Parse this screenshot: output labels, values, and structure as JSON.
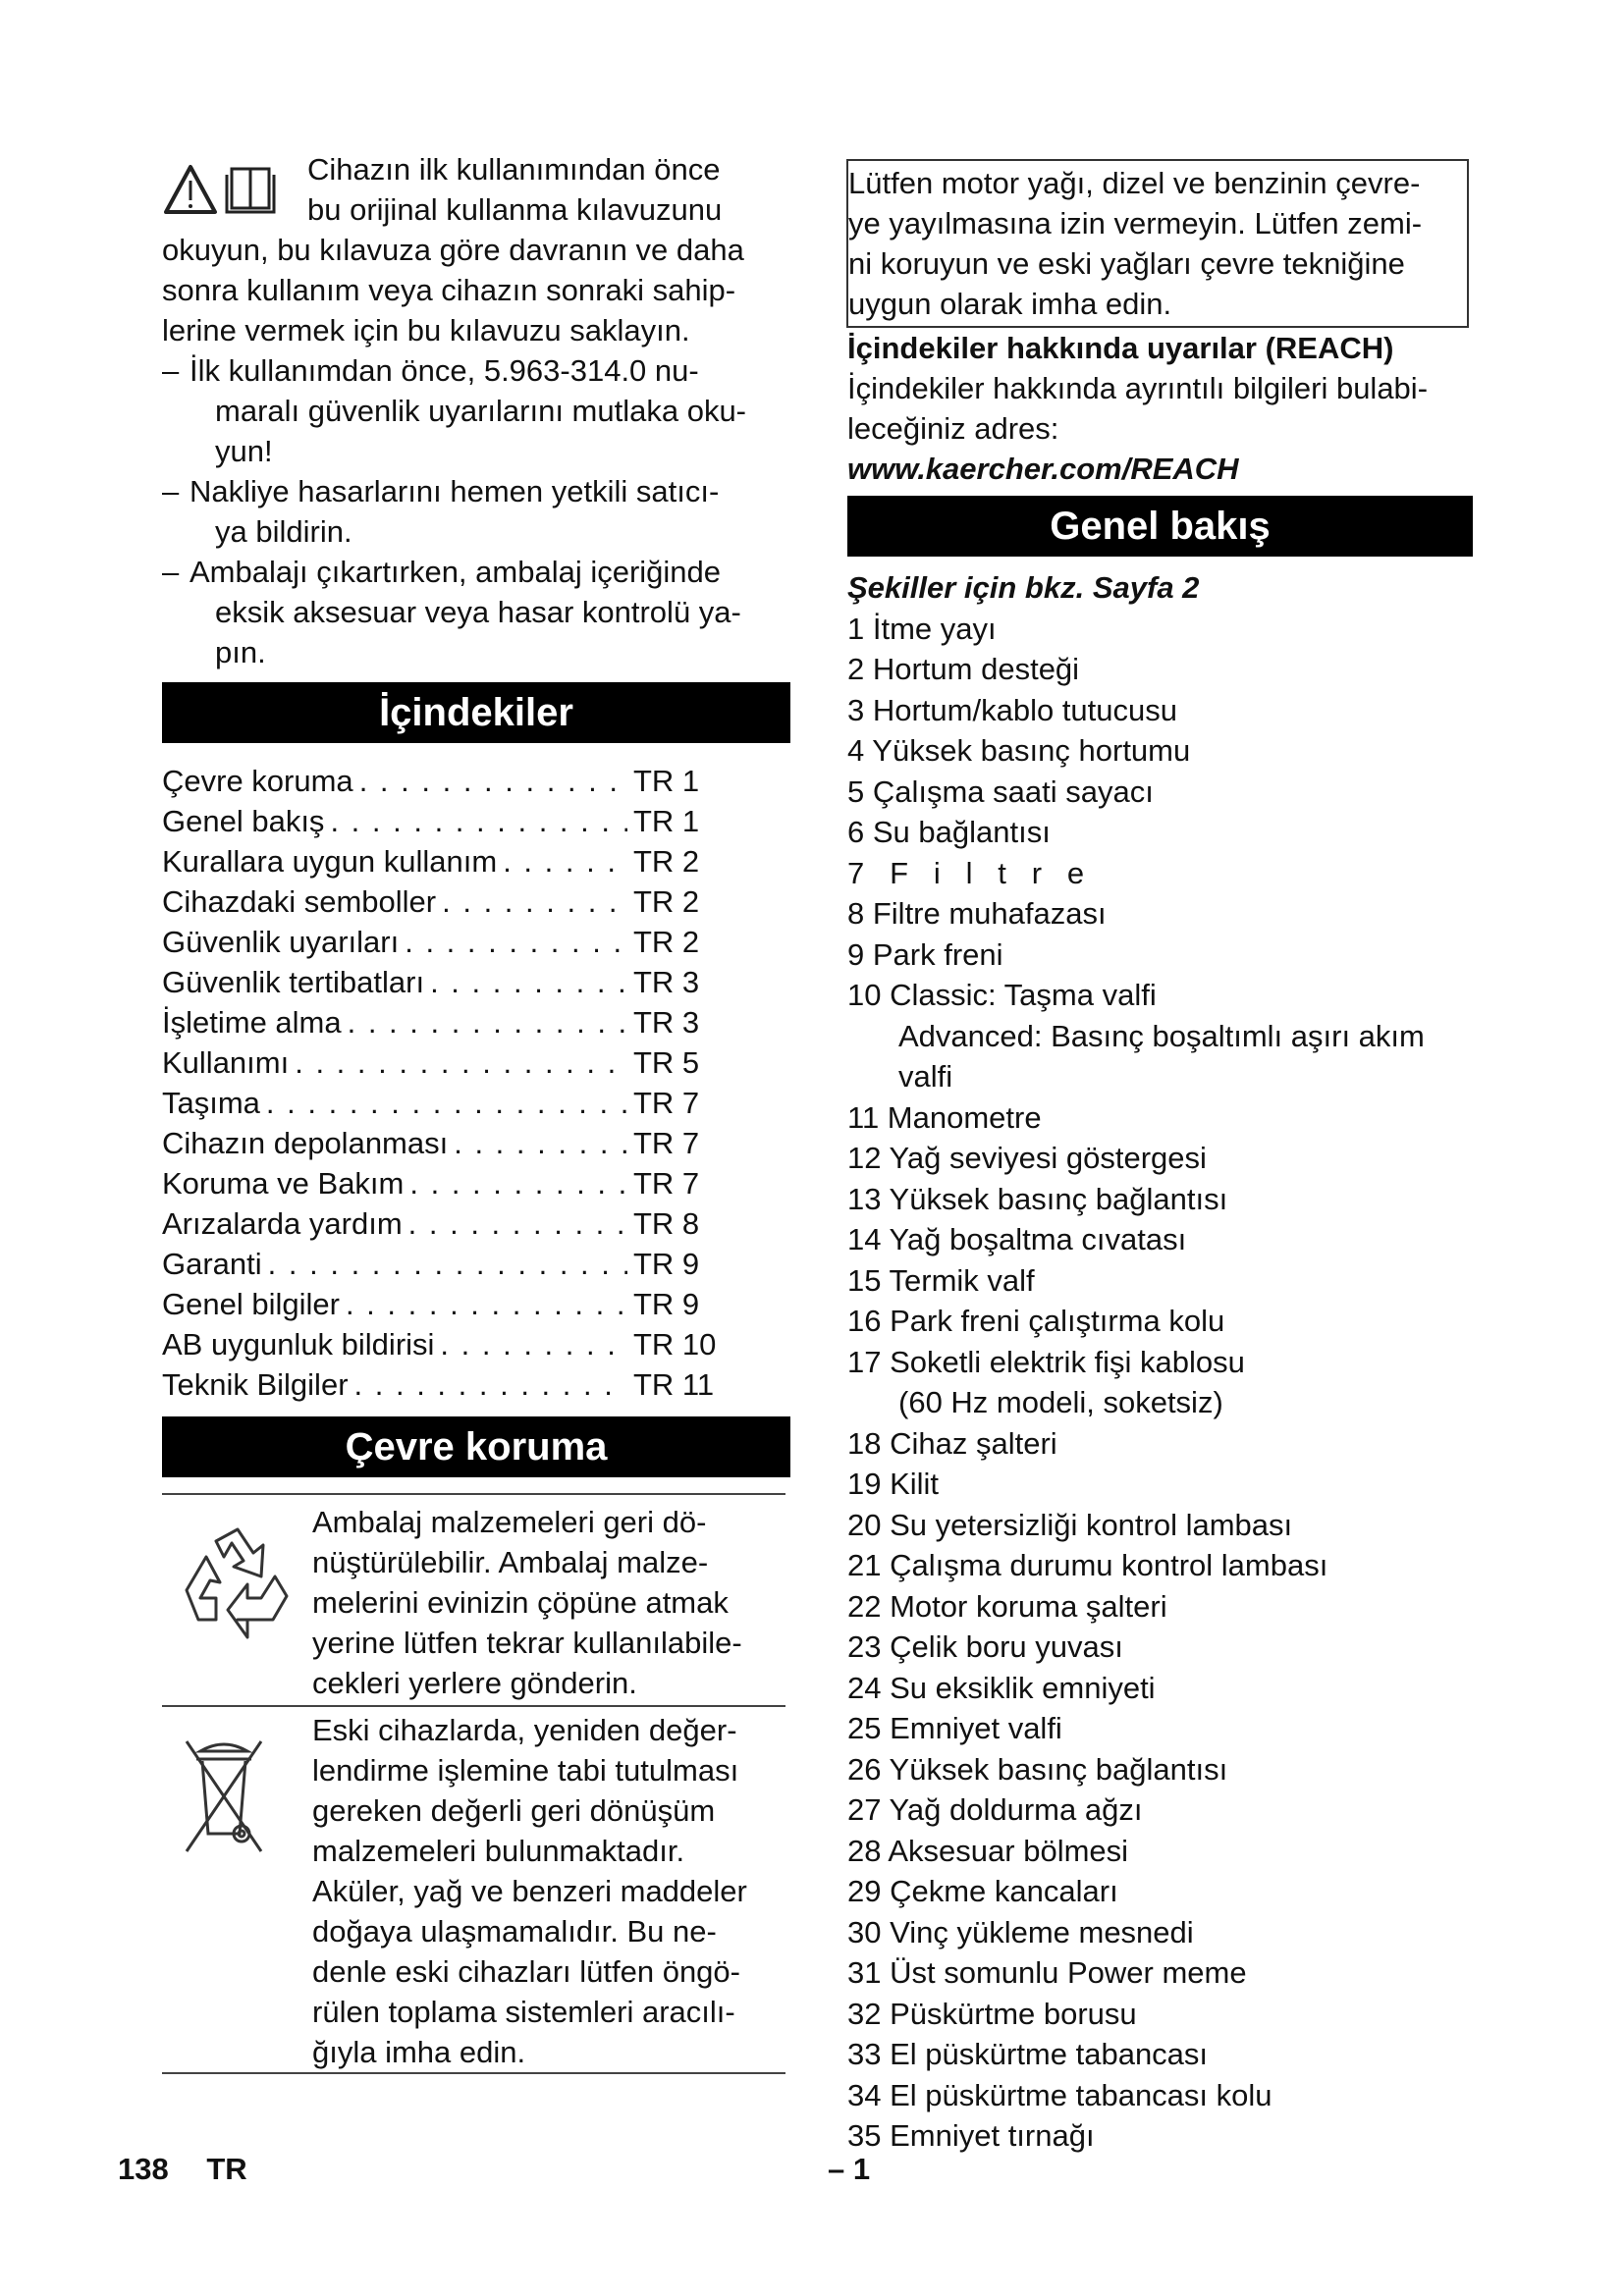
{
  "intro": {
    "icons": [
      "warning-triangle-icon",
      "manual-book-icon"
    ],
    "lines_first": [
      "Cihazın ilk kullanımından önce",
      "bu orijinal kullanma kılavuzunu"
    ],
    "lines_rest": [
      "okuyun, bu kılavuza göre davranın ve daha",
      "sonra kullanım veya cihazın sonraki sahip-",
      "lerine vermek için bu kılavuzu saklayın."
    ],
    "bullets": [
      {
        "dash": "–",
        "lines": [
          "İlk kullanımdan önce, 5.963-314.0 nu-",
          "maralı güvenlik uyarılarını mutlaka oku-",
          "yun!"
        ]
      },
      {
        "dash": "–",
        "lines": [
          "Nakliye hasarlarını hemen yetkili satıcı-",
          "ya bildirin."
        ]
      },
      {
        "dash": "–",
        "lines": [
          "Ambalajı çıkartırken, ambalaj içeriğinde",
          "eksik aksesuar veya hasar kontrolü ya-",
          "pın."
        ]
      }
    ]
  },
  "toc": {
    "heading": "İçindekiler",
    "items": [
      {
        "label": "Çevre koruma",
        "page": "TR 1"
      },
      {
        "label": "Genel bakış",
        "page": "TR 1"
      },
      {
        "label": "Kurallara uygun kullanım",
        "page": "TR 2"
      },
      {
        "label": "Cihazdaki semboller",
        "page": "TR 2"
      },
      {
        "label": "Güvenlik uyarıları",
        "page": "TR 2"
      },
      {
        "label": "Güvenlik tertibatları",
        "page": "TR 3"
      },
      {
        "label": "İşletime alma",
        "page": "TR 3"
      },
      {
        "label": "Kullanımı",
        "page": "TR 5"
      },
      {
        "label": "Taşıma",
        "page": "TR 7"
      },
      {
        "label": "Cihazın depolanması",
        "page": "TR 7"
      },
      {
        "label": "Koruma ve Bakım",
        "page": "TR 7"
      },
      {
        "label": "Arızalarda yardım",
        "page": "TR 8"
      },
      {
        "label": "Garanti",
        "page": "TR 9"
      },
      {
        "label": "Genel bilgiler",
        "page": "TR 9"
      },
      {
        "label": "AB uygunluk bildirisi",
        "page": "TR 10"
      },
      {
        "label": "Teknik Bilgiler",
        "page": "TR 11"
      }
    ]
  },
  "environment": {
    "heading": "Çevre koruma",
    "recycle": {
      "icon": "recycle-icon",
      "lines": [
        "Ambalaj malzemeleri geri dö-",
        "nüştürülebilir. Ambalaj malze-",
        "melerini evinizin çöpüne atmak",
        "yerine lütfen tekrar kullanılabile-",
        "cekleri yerlere gönderin."
      ]
    },
    "disposal": {
      "icon": "crossed-bin-icon",
      "lines": [
        "Eski cihazlarda, yeniden değer-",
        "lendirme işlemine tabi tutulması",
        "gereken değerli geri dönüşüm",
        "malzemeleri bulunmaktadır.",
        "Aküler, yağ ve benzeri maddeler",
        "doğaya ulaşmamalıdır. Bu ne-",
        "denle eski cihazları lütfen öngö-",
        "rülen toplama sistemleri aracılı-",
        "ğıyla imha edin."
      ]
    }
  },
  "oil_notice": {
    "lines": [
      "Lütfen motor yağı, dizel ve benzinin çevre-",
      "ye yayılmasına izin vermeyin. Lütfen zemi-",
      "ni koruyun ve eski yağları çevre tekniğine",
      "uygun olarak imha edin."
    ]
  },
  "reach": {
    "heading": "İçindekiler hakkında uyarılar (REACH)",
    "lines": [
      "İçindekiler hakkında ayrıntılı bilgileri bulabi-",
      "leceğiniz adres:"
    ],
    "url": "www.kaercher.com/REACH"
  },
  "overview": {
    "heading": "Genel bakış",
    "subheading": "Şekiller için bkz. Sayfa 2",
    "items": [
      {
        "text": "1 İtme yayı"
      },
      {
        "text": "2 Hortum desteği"
      },
      {
        "text": "3 Hortum/kablo tutucusu"
      },
      {
        "text": "4 Yüksek basınç hortumu"
      },
      {
        "text": "5 Çalışma saati sayacı"
      },
      {
        "text": "6 Su bağlantısı"
      },
      {
        "text": "7   F   i   l   t   r   e"
      },
      {
        "text": "8 Filtre muhafazası"
      },
      {
        "text": "9 Park freni"
      },
      {
        "text": "10 Classic: Taşma valfi",
        "cont": [
          "Advanced: Basınç boşaltımlı aşırı akım",
          "valfi"
        ]
      },
      {
        "text": "11 Manometre"
      },
      {
        "text": "12 Yağ seviyesi göstergesi"
      },
      {
        "text": "13 Yüksek basınç bağlantısı"
      },
      {
        "text": "14 Yağ boşaltma cıvatası"
      },
      {
        "text": "15 Termik valf"
      },
      {
        "text": "16 Park freni çalıştırma kolu"
      },
      {
        "text": "17 Soketli elektrik fişi kablosu",
        "cont": [
          "(60 Hz modeli, soketsiz)"
        ]
      },
      {
        "text": "18 Cihaz şalteri"
      },
      {
        "text": "19 Kilit"
      },
      {
        "text": "20 Su yetersizliği kontrol lambası"
      },
      {
        "text": "21 Çalışma durumu kontrol lambası"
      },
      {
        "text": "22 Motor koruma şalteri"
      },
      {
        "text": "23 Çelik boru yuvası"
      },
      {
        "text": "24 Su eksiklik emniyeti"
      },
      {
        "text": "25 Emniyet valfi"
      },
      {
        "text": "26 Yüksek basınç bağlantısı"
      },
      {
        "text": "27 Yağ doldurma ağzı"
      },
      {
        "text": "28 Aksesuar bölmesi"
      },
      {
        "text": "29 Çekme kancaları"
      },
      {
        "text": "30 Vinç yükleme mesnedi"
      },
      {
        "text": "31 Üst somunlu Power meme"
      },
      {
        "text": "32 Püskürtme borusu"
      },
      {
        "text": "33 El püskürtme tabancası"
      },
      {
        "text": "34 El püskürtme tabancası kolu"
      },
      {
        "text": "35 Emniyet tırnağı"
      }
    ]
  },
  "footer": {
    "page_number": "138",
    "language": "TR",
    "section_page": "– 1"
  }
}
